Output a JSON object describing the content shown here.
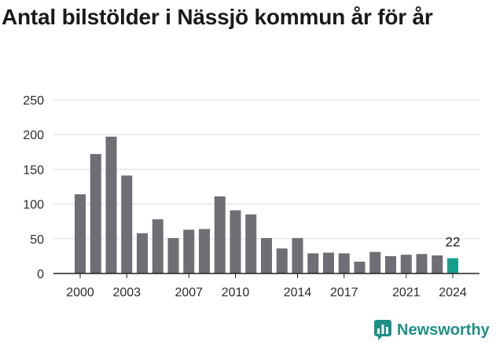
{
  "chart_data": {
    "type": "bar",
    "title": "Antal bilstölder i Nässjö kommun år för år",
    "xlabel": "",
    "ylabel": "",
    "x": [
      2000,
      2001,
      2002,
      2003,
      2004,
      2005,
      2006,
      2007,
      2008,
      2009,
      2010,
      2011,
      2012,
      2013,
      2014,
      2015,
      2016,
      2017,
      2018,
      2019,
      2020,
      2021,
      2022,
      2023,
      2024
    ],
    "values": [
      114,
      172,
      197,
      141,
      58,
      78,
      51,
      63,
      64,
      111,
      91,
      85,
      51,
      36,
      51,
      29,
      30,
      29,
      17,
      31,
      25,
      27,
      28,
      26,
      22
    ],
    "ylim": [
      0,
      250
    ],
    "yticks": [
      0,
      50,
      100,
      150,
      200,
      250
    ],
    "xtick_labels": [
      "2000",
      "2003",
      "2007",
      "2010",
      "2014",
      "2017",
      "2021",
      "2024"
    ],
    "highlight_label": "22",
    "grid": true,
    "colors": {
      "bar": "#6f6e74",
      "highlight": "#15a08c",
      "grid": "#dddddd",
      "axis": "#222222"
    }
  },
  "brand": {
    "name": "Newsworthy",
    "icon": "newsworthy-logo-icon",
    "color": "#1d8f87"
  }
}
